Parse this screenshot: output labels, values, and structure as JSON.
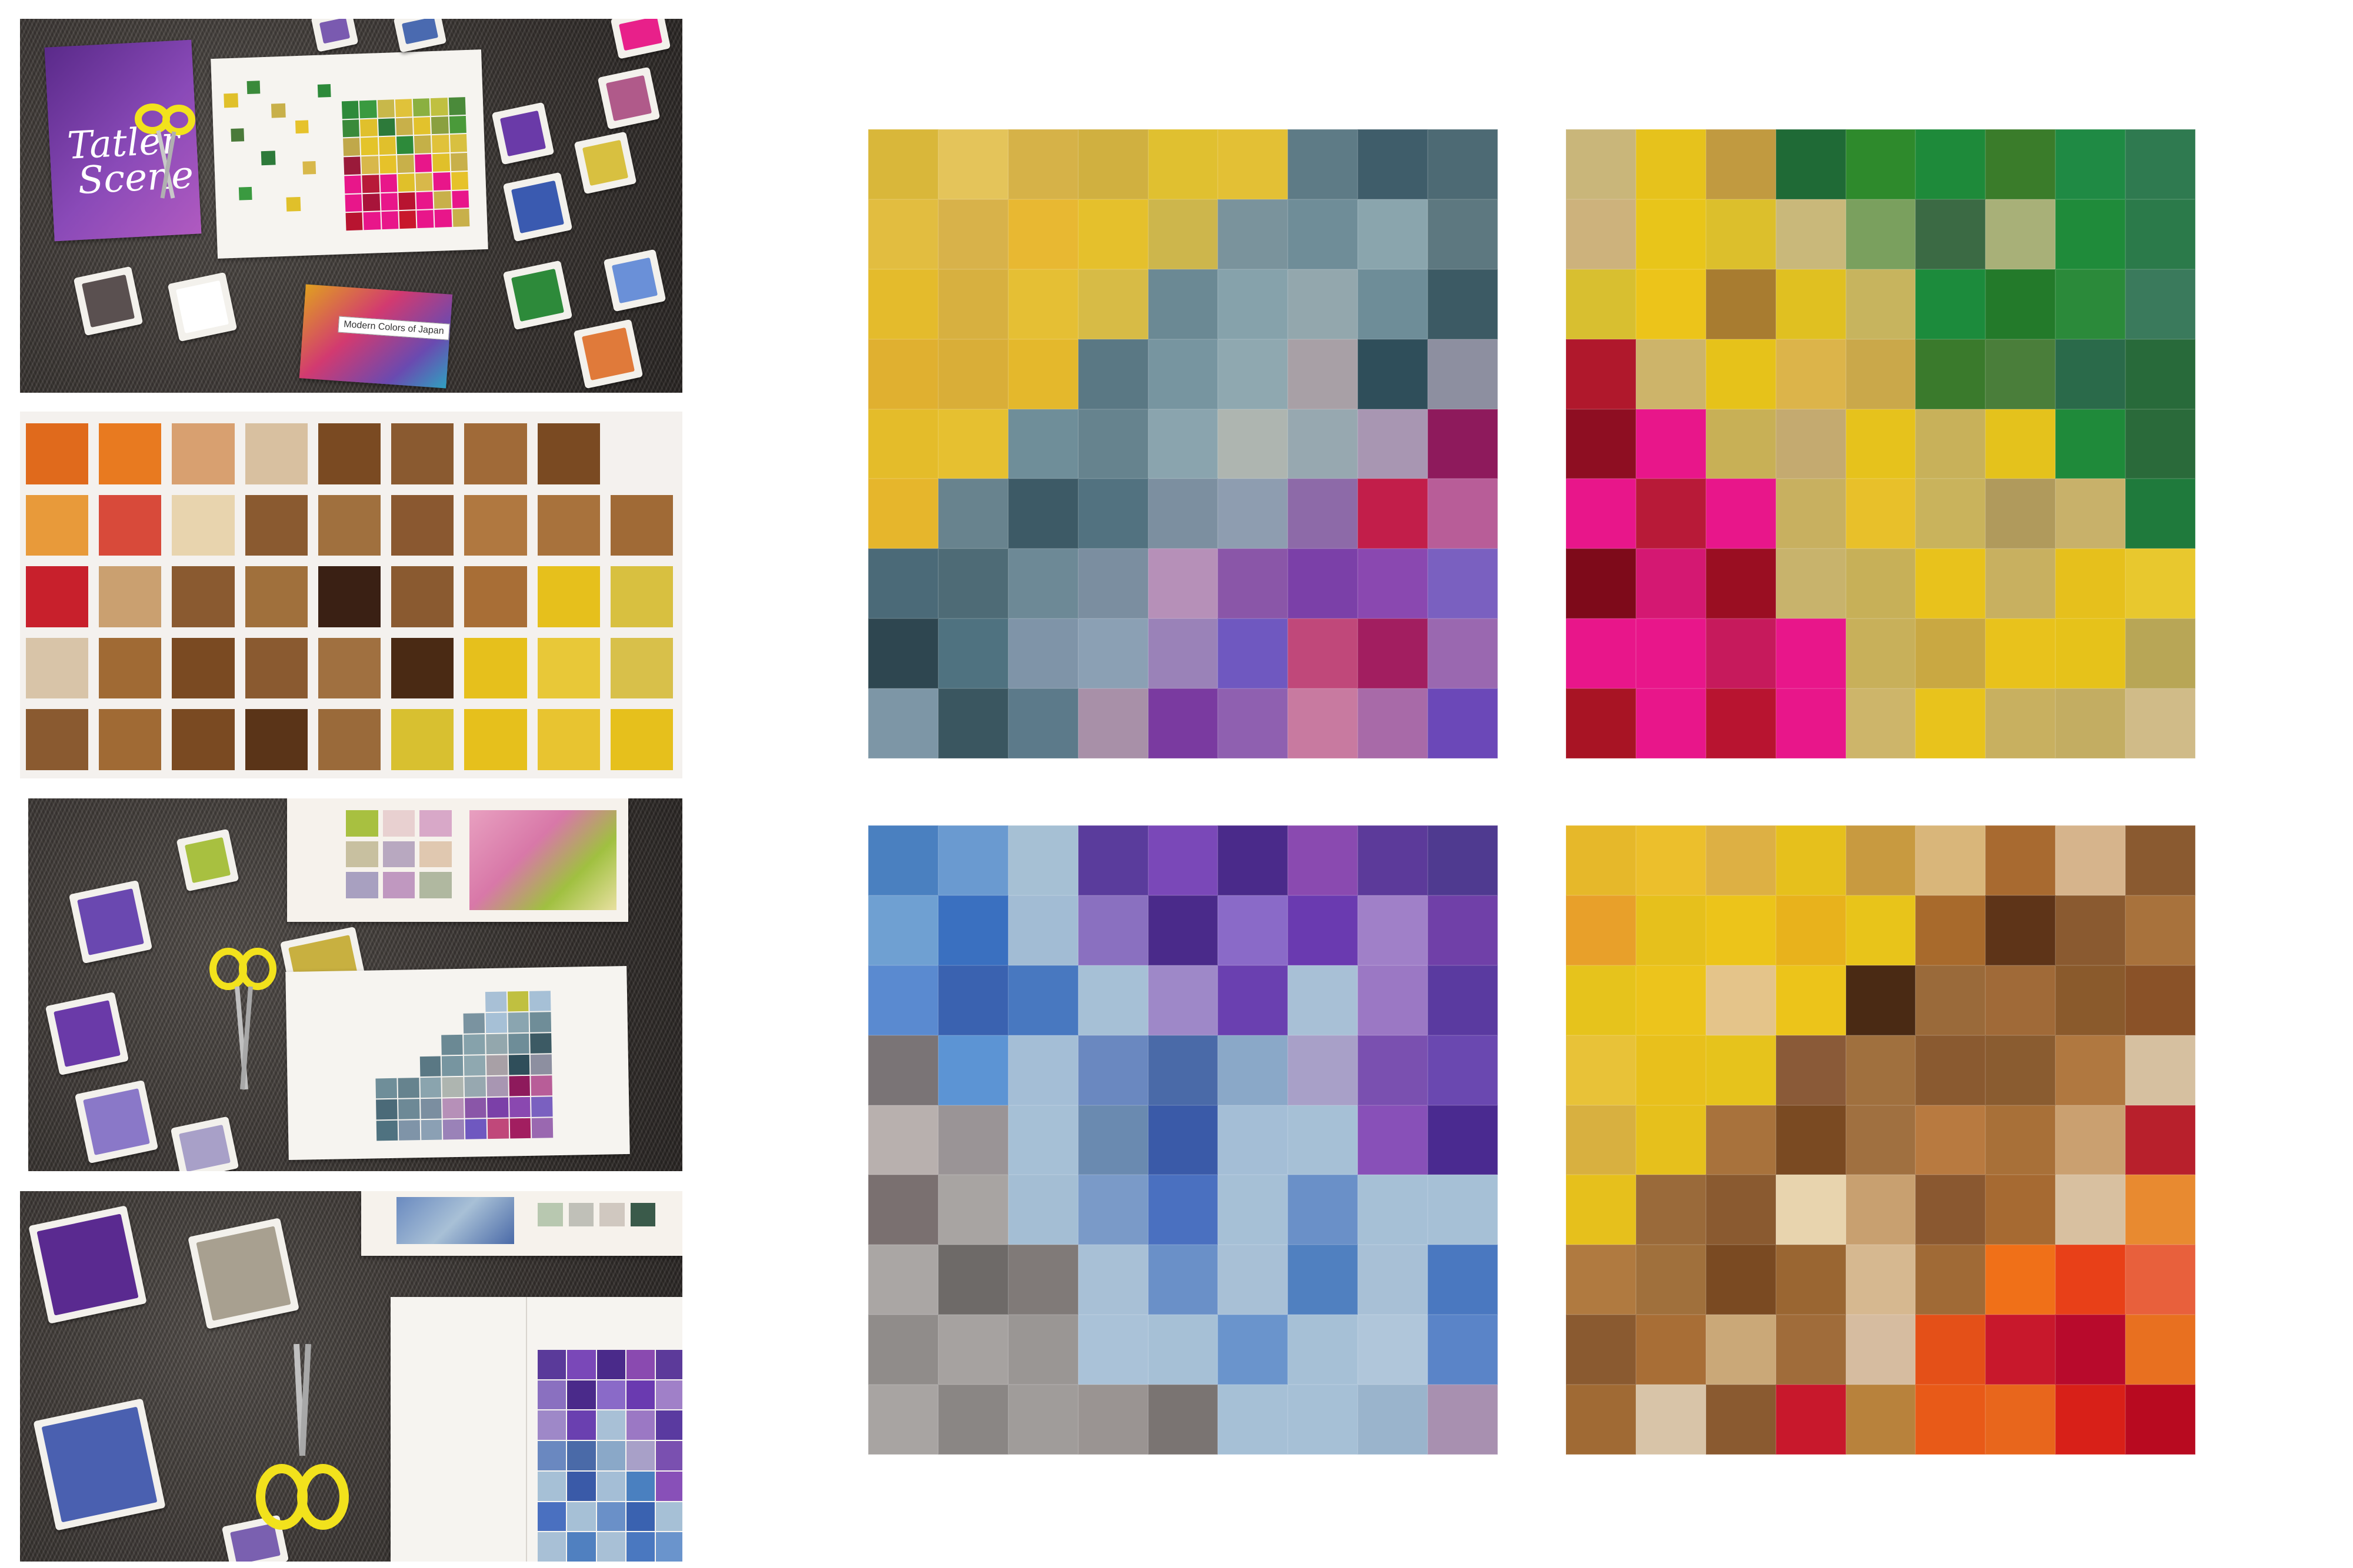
{
  "photos": {
    "p1": {
      "magazine_title_line1": "Tatler",
      "magazine_title_line2": "Scene",
      "book_title": "Modern Colors of Japan"
    }
  },
  "mosaics": {
    "top_left": [
      "#d9b73a",
      "#e4c45a",
      "#d6b248",
      "#d0b040",
      "#e0c030",
      "#e3c035",
      "#5e7b86",
      "#3f5d6a",
      "#4d6a74",
      "#e2bd40",
      "#d8b24a",
      "#e8b832",
      "#e5c02c",
      "#cdb64c",
      "#7a939c",
      "#6f8d98",
      "#8aa5ad",
      "#5d7880",
      "#e4bb2c",
      "#d7b040",
      "#e5bf34",
      "#d7bb46",
      "#6b8994",
      "#86a2ab",
      "#93a7ad",
      "#6e8d98",
      "#3c5a64",
      "#e0b030",
      "#d9ae38",
      "#e4b82c",
      "#5a7884",
      "#7795a0",
      "#8fa8b0",
      "#a8a0a6",
      "#2f4e5a",
      "#8d8fa0",
      "#e4bc2a",
      "#e6c030",
      "#6f8e99",
      "#66838e",
      "#8aa4ae",
      "#aeb5b0",
      "#97a8b0",
      "#a896b2",
      "#8e1a5c",
      "#e6b62c",
      "#68838e",
      "#3d5a66",
      "#527280",
      "#7c8fa0",
      "#8e9db0",
      "#8d6aa8",
      "#c21e4a",
      "#b85d98",
      "#4b6a78",
      "#4e6b76",
      "#6d8996",
      "#7b8ea0",
      "#b690b8",
      "#8a56a8",
      "#7b40a8",
      "#8a48b0",
      "#7a60c0",
      "#2e4650",
      "#4f7280",
      "#7f94a8",
      "#8ba0b4",
      "#9a82b8",
      "#6f58c0",
      "#c0487a",
      "#a21e60",
      "#9a68b0",
      "#7d96a6",
      "#3a5660",
      "#5c7a8a",
      "#a890a8",
      "#7a3aa0",
      "#8f60b0",
      "#c87aa0",
      "#a86aa8",
      "#6b48b8"
    ],
    "top_right": [
      "#c9b67a",
      "#e6c21c",
      "#c19a40",
      "#1f6a36",
      "#2e8a2c",
      "#1e8a3a",
      "#3a7c2a",
      "#1f8a44",
      "#2f7a50",
      "#cdb27c",
      "#e8c51a",
      "#dcbf2c",
      "#c9b87a",
      "#7aa05e",
      "#3b6a44",
      "#a8b078",
      "#1f8b3a",
      "#2b7a4a",
      "#d8bf30",
      "#ecc41a",
      "#a87c30",
      "#e0c021",
      "#c7b45e",
      "#1c8b3c",
      "#237a2a",
      "#2b8a3a",
      "#3a7a5c",
      "#b0182c",
      "#cdb46a",
      "#e6c21a",
      "#dcb44a",
      "#caa84a",
      "#3a7a2c",
      "#4a7e3a",
      "#2a6a4a",
      "#286a3a",
      "#8e0e22",
      "#e8168a",
      "#c8b056",
      "#c4aa70",
      "#e6c21c",
      "#c8b15a",
      "#e4c21c",
      "#1f8a3a",
      "#2a6a3a",
      "#e8168a",
      "#b81a38",
      "#e8168a",
      "#c8b060",
      "#e8c02a",
      "#c9b35c",
      "#b09a5c",
      "#c8b16a",
      "#1f7a3c",
      "#7e0a1a",
      "#d41872",
      "#9a0e22",
      "#c8b36c",
      "#c7b058",
      "#e8c21c",
      "#c8b060",
      "#e6c01c",
      "#e8c82e",
      "#e8168a",
      "#e8168a",
      "#c61a5c",
      "#e8168a",
      "#c8b05a",
      "#c9a842",
      "#e8c21c",
      "#e6c21a",
      "#b8a656",
      "#a81424",
      "#e8168a",
      "#b81430",
      "#e8168a",
      "#cdb56a",
      "#e8c31c",
      "#c8b060",
      "#c3ad62",
      "#d0bb88"
    ],
    "bottom_left": [
      "#4a80c0",
      "#6a9ad0",
      "#a6c0d4",
      "#5a3c9c",
      "#7a48b8",
      "#4a2a8a",
      "#8a4ab0",
      "#5c3a9a",
      "#4f3a90",
      "#6fa0d2",
      "#3a70c0",
      "#a2bcd4",
      "#8a70c0",
      "#4a2a8a",
      "#8a6ac8",
      "#6a3ab0",
      "#a080c8",
      "#7040a8",
      "#5a8ad0",
      "#3a62b0",
      "#4878c0",
      "#a6c0d6",
      "#9e88c8",
      "#6a40b0",
      "#a8c0d6",
      "#9b78c4",
      "#5a3aa0",
      "#7a7476",
      "#5c94d4",
      "#a4bed6",
      "#6a88c0",
      "#4a6aa8",
      "#8aa8c8",
      "#a8a0c8",
      "#7a50b0",
      "#6a48b0",
      "#b8b0ae",
      "#9a9496",
      "#a6c0d6",
      "#6a8ab0",
      "#3a5aa8",
      "#a4bed6",
      "#a6c0d6",
      "#8850b8",
      "#4a2a90",
      "#7a7070",
      "#a8a4a2",
      "#a4bed4",
      "#7a9ac8",
      "#4a70c0",
      "#a6c0d6",
      "#6a90c8",
      "#a6c0d6",
      "#a6c0d6",
      "#aaa6a4",
      "#6e6a68",
      "#807a78",
      "#a8c0d6",
      "#6a90c8",
      "#a8c0d6",
      "#5080c0",
      "#a8c0d6",
      "#4a78c0",
      "#908c8a",
      "#a6a2a0",
      "#9a9694",
      "#aac2d8",
      "#a6c0d6",
      "#6a94cc",
      "#a6c0d6",
      "#b0c6da",
      "#5a84c8",
      "#a8a4a2",
      "#8a8684",
      "#a09c9a",
      "#9a9492",
      "#7a7472",
      "#a6c0d6",
      "#a6c0d6",
      "#9ab4cc",
      "#a890b0"
    ],
    "bottom_right": [
      "#e6b82a",
      "#ecbf2c",
      "#ddb044",
      "#e6c01c",
      "#c89a40",
      "#d9b67a",
      "#a86a30",
      "#d6b48c",
      "#8a5a30",
      "#e8a02a",
      "#e6c01c",
      "#ecc41a",
      "#e8b21c",
      "#e8c41a",
      "#a86a2c",
      "#5e3418",
      "#8a5a30",
      "#a8723c",
      "#e6c31c",
      "#ecc41c",
      "#e4c48a",
      "#ecc41a",
      "#4a2a14",
      "#9a6a3a",
      "#a06a38",
      "#8a5a2c",
      "#8a5228",
      "#e8c238",
      "#e8c01c",
      "#e6c31c",
      "#8a5a38",
      "#a0703e",
      "#8a5a30",
      "#8a5c30",
      "#b07840",
      "#d6c0a0",
      "#d8b040",
      "#e6c01c",
      "#a8723c",
      "#7a4a22",
      "#a07040",
      "#b87a40",
      "#a87038",
      "#caa070",
      "#b8202c",
      "#e6c01c",
      "#9a6a3a",
      "#8a5a30",
      "#e8d4ae",
      "#c8a070",
      "#8a5830",
      "#a66a32",
      "#d8c0a0",
      "#e88a30",
      "#b07a40",
      "#a0703c",
      "#7a4a22",
      "#9a6632",
      "#d6b890",
      "#a06a36",
      "#f07018",
      "#e84018",
      "#e8603c",
      "#8a5a30",
      "#a86e36",
      "#caa878",
      "#a06c3a",
      "#d6bca0",
      "#e45018",
      "#c8182c",
      "#b80a2c",
      "#e87020",
      "#a06a34",
      "#d8c4a8",
      "#8a5a30",
      "#c8182c",
      "#b8823c",
      "#e85a18",
      "#e8661c",
      "#d82018",
      "#b80a20"
    ]
  }
}
